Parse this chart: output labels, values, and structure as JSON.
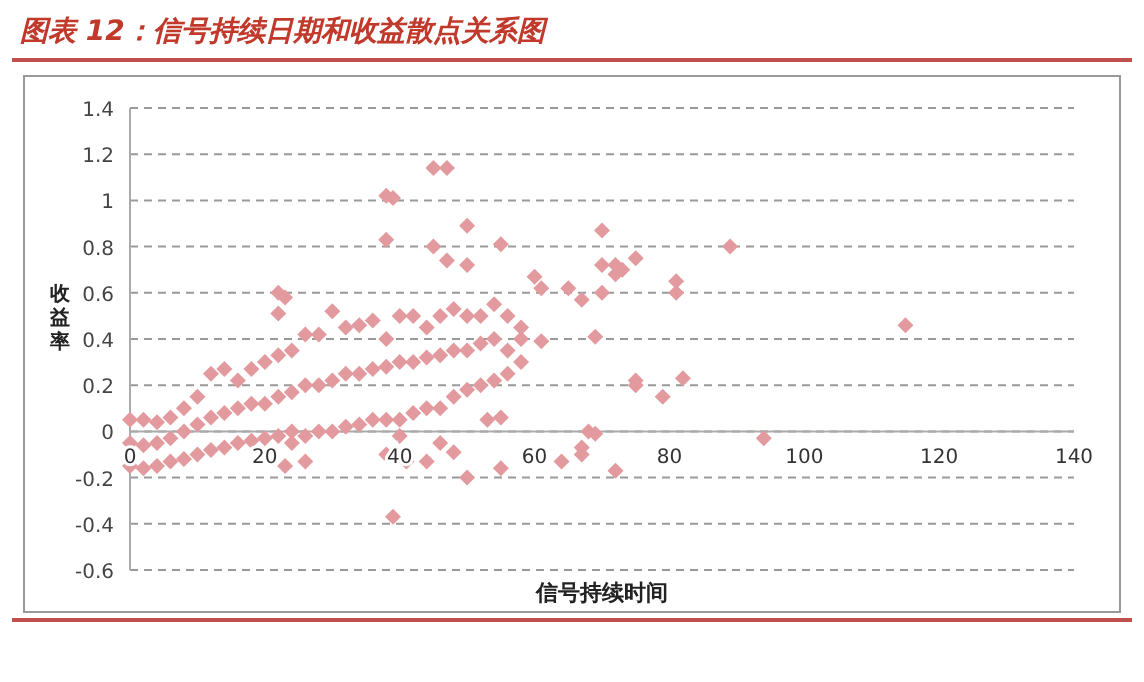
{
  "chart_data": {
    "type": "scatter",
    "title": "图表 12：信号持续日期和收益散点关系图",
    "xlabel": "信号持续时间",
    "ylabel": "收益率",
    "xlim": [
      0,
      140
    ],
    "xticks": [
      0,
      20,
      40,
      60,
      80,
      100,
      120,
      140
    ],
    "ylim": [
      -0.6,
      1.4
    ],
    "yticks": [
      -0.6,
      -0.4,
      -0.2,
      0,
      0.2,
      0.4,
      0.6,
      0.8,
      1,
      1.2,
      1.4
    ],
    "grid": "y",
    "marker": "diamond",
    "series": [
      {
        "color": "#e39a9e",
        "x": [
          0,
          0,
          0,
          2,
          2,
          2,
          4,
          4,
          4,
          6,
          6,
          6,
          8,
          8,
          8,
          10,
          10,
          10,
          12,
          12,
          12,
          14,
          14,
          14,
          16,
          16,
          16,
          18,
          18,
          18,
          20,
          20,
          20,
          22,
          22,
          22,
          24,
          24,
          24,
          26,
          26,
          26,
          28,
          28,
          28,
          30,
          30,
          30,
          32,
          32,
          32,
          34,
          34,
          34,
          36,
          36,
          36,
          38,
          38,
          38,
          40,
          40,
          40,
          42,
          42,
          42,
          44,
          44,
          44,
          46,
          46,
          46,
          48,
          48,
          48,
          50,
          50,
          50,
          52,
          52,
          52,
          54,
          54,
          54,
          56,
          56,
          56,
          58,
          58,
          58,
          38,
          39,
          45,
          47,
          38,
          45,
          50,
          55,
          47,
          50,
          22,
          23,
          22,
          60,
          61,
          65,
          67,
          70,
          72,
          72,
          70,
          73,
          75,
          81,
          81,
          89,
          70,
          115,
          69,
          75,
          75,
          79,
          82,
          94,
          68,
          69,
          67,
          67,
          72,
          64,
          55,
          50,
          44,
          41,
          39,
          38,
          46,
          48,
          40,
          24,
          23,
          26,
          53,
          55,
          61
        ],
        "values": [
          -0.15,
          -0.05,
          0.05,
          -0.16,
          -0.06,
          0.05,
          -0.15,
          -0.05,
          0.04,
          -0.13,
          -0.03,
          0.06,
          -0.12,
          0.0,
          0.1,
          -0.1,
          0.03,
          0.15,
          -0.08,
          0.06,
          0.25,
          -0.07,
          0.08,
          0.27,
          -0.05,
          0.1,
          0.22,
          -0.04,
          0.12,
          0.27,
          -0.03,
          0.12,
          0.3,
          -0.02,
          0.15,
          0.33,
          0.0,
          0.17,
          0.35,
          -0.02,
          0.2,
          0.42,
          0.0,
          0.2,
          0.42,
          0.0,
          0.22,
          0.52,
          0.02,
          0.25,
          0.45,
          0.03,
          0.25,
          0.46,
          0.05,
          0.27,
          0.48,
          0.05,
          0.28,
          0.4,
          0.05,
          0.3,
          0.5,
          0.08,
          0.3,
          0.5,
          0.1,
          0.32,
          0.45,
          0.1,
          0.33,
          0.5,
          0.15,
          0.35,
          0.53,
          0.18,
          0.35,
          0.5,
          0.2,
          0.38,
          0.5,
          0.22,
          0.4,
          0.55,
          0.25,
          0.35,
          0.5,
          0.3,
          0.4,
          0.45,
          1.02,
          1.01,
          1.14,
          1.14,
          0.83,
          0.8,
          0.89,
          0.81,
          0.74,
          0.72,
          0.6,
          0.58,
          0.51,
          0.67,
          0.62,
          0.62,
          0.57,
          0.72,
          0.72,
          0.68,
          0.87,
          0.7,
          0.75,
          0.65,
          0.6,
          0.8,
          0.6,
          0.46,
          0.41,
          0.2,
          0.22,
          0.15,
          0.23,
          -0.03,
          0.0,
          -0.01,
          -0.07,
          -0.1,
          -0.17,
          -0.13,
          -0.16,
          -0.2,
          -0.13,
          -0.13,
          -0.37,
          -0.1,
          -0.05,
          -0.09,
          -0.02,
          -0.05,
          -0.15,
          -0.13,
          0.05,
          0.06,
          0.39
        ]
      }
    ]
  }
}
